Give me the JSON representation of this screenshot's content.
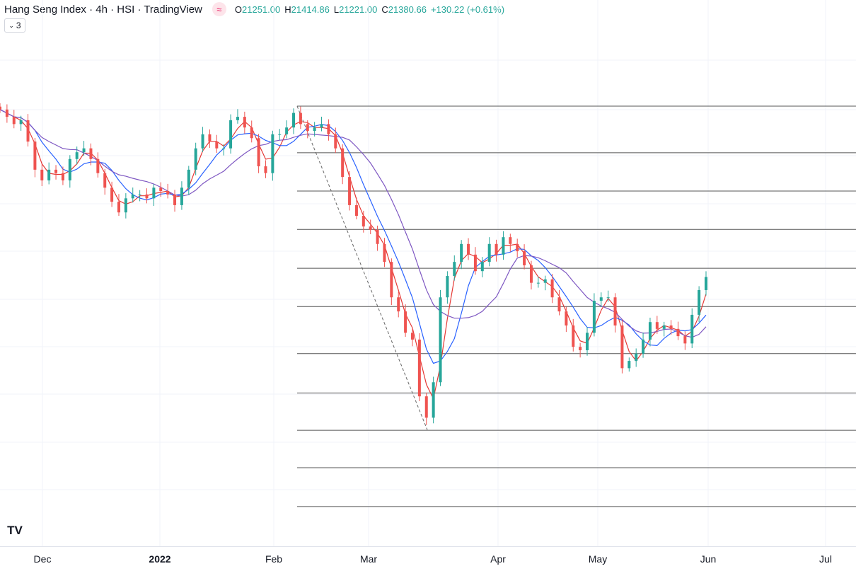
{
  "header": {
    "symbol": "Hang Seng Index · 4h · HSI · TradingView",
    "open_label": "O",
    "open": "21251.00",
    "high_label": "H",
    "high": "21414.86",
    "low_label": "L",
    "low": "21221.00",
    "close_label": "C",
    "close": "21380.66",
    "change": "+130.22 (+0.61%)",
    "indicator_count": "3"
  },
  "colors": {
    "up": "#26a69a",
    "down": "#ef5350",
    "ma_fast": "#e53935",
    "ma_mid": "#2962ff",
    "ma_slow": "#7e57c2",
    "fib": "#555555"
  },
  "chart_data": {
    "type": "candlestick",
    "title": "Hang Seng Index · 4h · HSI",
    "x_ticks": [
      {
        "label": "Dec",
        "bold": false
      },
      {
        "label": "2022",
        "bold": true
      },
      {
        "label": "Feb",
        "bold": false
      },
      {
        "label": "Mar",
        "bold": false
      },
      {
        "label": "Apr",
        "bold": false
      },
      {
        "label": "May",
        "bold": false
      },
      {
        "label": "Jun",
        "bold": false
      },
      {
        "label": "Jul",
        "bold": false
      }
    ],
    "closes": [
      24830,
      24680,
      24530,
      24610,
      24170,
      23590,
      23370,
      23590,
      23520,
      23370,
      23810,
      23950,
      24030,
      23810,
      23520,
      23220,
      22930,
      22710,
      23000,
      23080,
      23080,
      23000,
      23220,
      23150,
      23080,
      22860,
      23220,
      23590,
      24030,
      24320,
      24170,
      24030,
      24030,
      24610,
      24680,
      24460,
      24240,
      23660,
      23520,
      24320,
      24320,
      24460,
      24760,
      24530,
      24390,
      24460,
      24530,
      24320,
      24030,
      23440,
      22860,
      22640,
      22420,
      22350,
      22060,
      21690,
      20960,
      20670,
      20230,
      20090,
      18920,
      18480,
      19210,
      20960,
      21400,
      21690,
      22060,
      21840,
      21500,
      21690,
      22060,
      21840,
      22200,
      22060,
      21910,
      21620,
      21260,
      21260,
      21330,
      20960,
      20670,
      20380,
      19940,
      19870,
      20230,
      20890,
      20960,
      20960,
      20380,
      19500,
      19650,
      19800,
      20090,
      20450,
      20310,
      20380,
      20310,
      20160,
      20010,
      20600,
      21110,
      21380
    ],
    "moving_averages": [
      {
        "name": "fast",
        "period": 3
      },
      {
        "name": "mid",
        "period": 6
      },
      {
        "name": "slow",
        "period": 12
      }
    ],
    "fib_levels": [
      24900,
      23940,
      23150,
      22360,
      21560,
      20770,
      19800,
      18990,
      18220,
      17450,
      16650
    ],
    "trendline": {
      "from": 24900,
      "to": 18230,
      "style": "dashed"
    }
  }
}
